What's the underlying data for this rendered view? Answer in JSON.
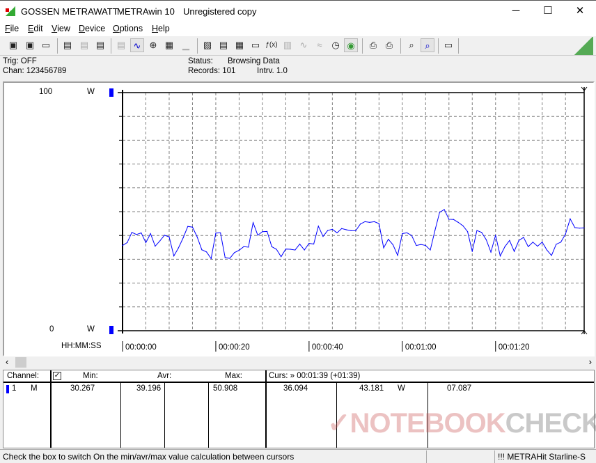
{
  "window": {
    "brand": "GOSSEN METRAWATT",
    "app": "METRAwin 10",
    "license": "Unregistered copy",
    "minimize": "─",
    "maximize": "☐",
    "close": "✕"
  },
  "menu": [
    "File",
    "Edit",
    "View",
    "Device",
    "Options",
    "Help"
  ],
  "toolbar": [
    "save-icon",
    "save-as-icon",
    "open-folder-icon",
    "device-read-icon",
    "device-transfer-icon",
    "device-memory-icon",
    "list-view-icon",
    "wave-view-icon",
    "crosshair-icon",
    "table-icon",
    "histogram-icon",
    "export-icon",
    "import-icon",
    "data-grid-icon",
    "monitor-icon",
    "function-icon",
    "device-icon",
    "signal-icon",
    "multi-signal-icon",
    "clock-icon",
    "globe-icon",
    "print-icon",
    "print-preview-icon",
    "zoom-wave-icon",
    "zoom-signal-icon",
    "comment-icon"
  ],
  "info": {
    "trig": "Trig: OFF",
    "chan": "Chan:  123456789",
    "status_label": "Status:",
    "status_value": "Browsing Data",
    "records": "Records: 101",
    "interval": "Intrv. 1.0"
  },
  "colors": {
    "series": "#0000ff",
    "grid": "#808080"
  },
  "chart_data": {
    "type": "line",
    "ylim": [
      0,
      100
    ],
    "yticks": [
      "100",
      "0"
    ],
    "yunit": "W",
    "xlabel": "HH:MM:SS",
    "xlim": [
      0,
      99
    ],
    "xtick_values": [
      0,
      20,
      40,
      60,
      80
    ],
    "xticks": [
      "00:00:00",
      "00:00:20",
      "00:00:40",
      "00:01:00",
      "00:01:20"
    ],
    "grid": true,
    "series": [
      {
        "values": [
          35.8,
          37.0,
          41.3,
          40.4,
          41.1,
          37.0,
          40.8,
          35.5,
          37.7,
          40.1,
          39.4,
          31.4,
          34.8,
          39.0,
          43.8,
          43.5,
          39.4,
          34.0,
          33.1,
          30.3,
          41.0,
          41.1,
          30.7,
          30.4,
          32.8,
          33.8,
          35.3,
          35.1,
          45.4,
          40.1,
          41.6,
          41.7,
          35.3,
          34.2,
          31.1,
          34.3,
          34.2,
          33.9,
          36.4,
          33.9,
          36.7,
          36.4,
          43.9,
          39.6,
          42.1,
          42.6,
          41.1,
          42.9,
          42.4,
          42.0,
          42.0,
          44.8,
          45.8,
          45.5,
          45.8,
          45.0,
          34.8,
          38.4,
          36.1,
          31.6,
          40.8,
          41.1,
          40.0,
          35.8,
          36.2,
          35.8,
          33.9,
          42.1,
          49.7,
          50.9,
          46.8,
          46.7,
          45.5,
          44.1,
          41.6,
          33.3,
          42.1,
          41.3,
          38.2,
          33.0,
          40.1,
          31.4,
          35.3,
          37.9,
          33.3,
          37.9,
          39.2,
          35.3,
          37.2,
          35.5,
          37.2,
          33.9,
          31.6,
          36.3,
          37.2,
          40.6,
          47.0,
          43.3,
          43.1,
          43.2
        ]
      }
    ]
  },
  "table": {
    "headers": {
      "channel": "Channel:",
      "min": "Min:",
      "avr": "Avr:",
      "max": "Max:",
      "curs": "Curs: » 00:01:39 (+01:39)"
    },
    "row": {
      "num": "1",
      "mode": "M",
      "min": "30.267",
      "avr": "39.196",
      "max": "50.908",
      "c1": "36.094",
      "c2": "43.181",
      "unit": "W",
      "c3": "07.087"
    }
  },
  "watermark": "NOTEBOOKCHECK",
  "status": {
    "hint": "Check the box to switch On the min/avr/max value calculation between cursors",
    "device": "!!! METRAHit Starline-Se"
  }
}
